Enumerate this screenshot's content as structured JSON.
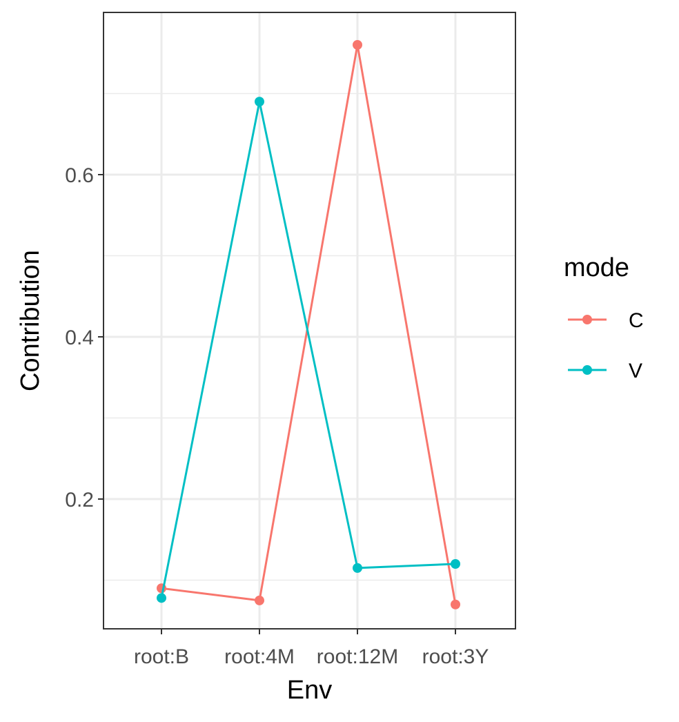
{
  "chart_data": {
    "type": "line",
    "xlabel": "Env",
    "ylabel": "Contribution",
    "categories": [
      "root:B",
      "root:4M",
      "root:12M",
      "root:3Y"
    ],
    "yticks": [
      0.2,
      0.4,
      0.6
    ],
    "ytick_labels": [
      "0.2",
      "0.4",
      "0.6"
    ],
    "ylim": [
      0.04,
      0.8
    ],
    "grid": true,
    "legend": {
      "title": "mode",
      "position": "right"
    },
    "series": [
      {
        "name": "C",
        "color": "#F8766D",
        "values": [
          0.09,
          0.075,
          0.76,
          0.07
        ]
      },
      {
        "name": "V",
        "color": "#00BFC4",
        "values": [
          0.078,
          0.69,
          0.115,
          0.12
        ]
      }
    ]
  }
}
